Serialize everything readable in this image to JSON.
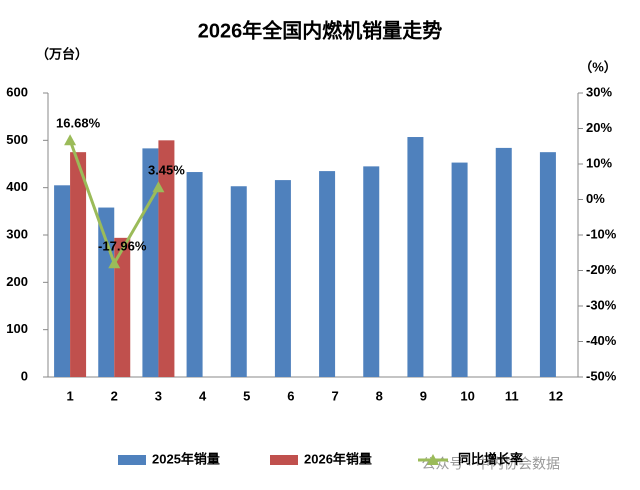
{
  "chart_data": {
    "type": "bar",
    "title": "2026年全国内燃机销量走势",
    "y_label": "（万台）",
    "y2_label": "（%）",
    "categories": [
      "1",
      "2",
      "3",
      "4",
      "5",
      "6",
      "7",
      "8",
      "9",
      "10",
      "11",
      "12"
    ],
    "series": [
      {
        "name": "2025年销量",
        "type": "bar",
        "color": "#4f81bd",
        "values": [
          405,
          358,
          483,
          433,
          403,
          416,
          435,
          445,
          507,
          453,
          484,
          475
        ]
      },
      {
        "name": "2026年销量",
        "type": "bar",
        "color": "#c0504d",
        "values": [
          475,
          294,
          500,
          null,
          null,
          null,
          null,
          null,
          null,
          null,
          null,
          null
        ]
      },
      {
        "name": "同比增长率",
        "type": "line",
        "axis": "y2",
        "color": "#9bbb59",
        "values": [
          16.68,
          -17.96,
          3.45,
          null,
          null,
          null,
          null,
          null,
          null,
          null,
          null,
          null
        ],
        "value_labels": [
          "16.68%",
          "-17.96%",
          "3.45%",
          null,
          null,
          null,
          null,
          null,
          null,
          null,
          null,
          null
        ]
      }
    ],
    "ylim": [
      0,
      600
    ],
    "yticks": [
      0,
      100,
      200,
      300,
      400,
      500,
      600
    ],
    "y2lim": [
      -50,
      30
    ],
    "y2ticks": [
      {
        "value": -50,
        "label": "-50%"
      },
      {
        "value": -40,
        "label": "-40%"
      },
      {
        "value": -30,
        "label": "-30%"
      },
      {
        "value": -20,
        "label": "-20%"
      },
      {
        "value": -10,
        "label": "-10%"
      },
      {
        "value": 0,
        "label": "0%"
      },
      {
        "value": 10,
        "label": "10%"
      },
      {
        "value": 20,
        "label": "20%"
      },
      {
        "value": 30,
        "label": "30%"
      }
    ],
    "grid": false,
    "legend": "bottom",
    "watermark": "公众号 · 中内协会数据"
  }
}
